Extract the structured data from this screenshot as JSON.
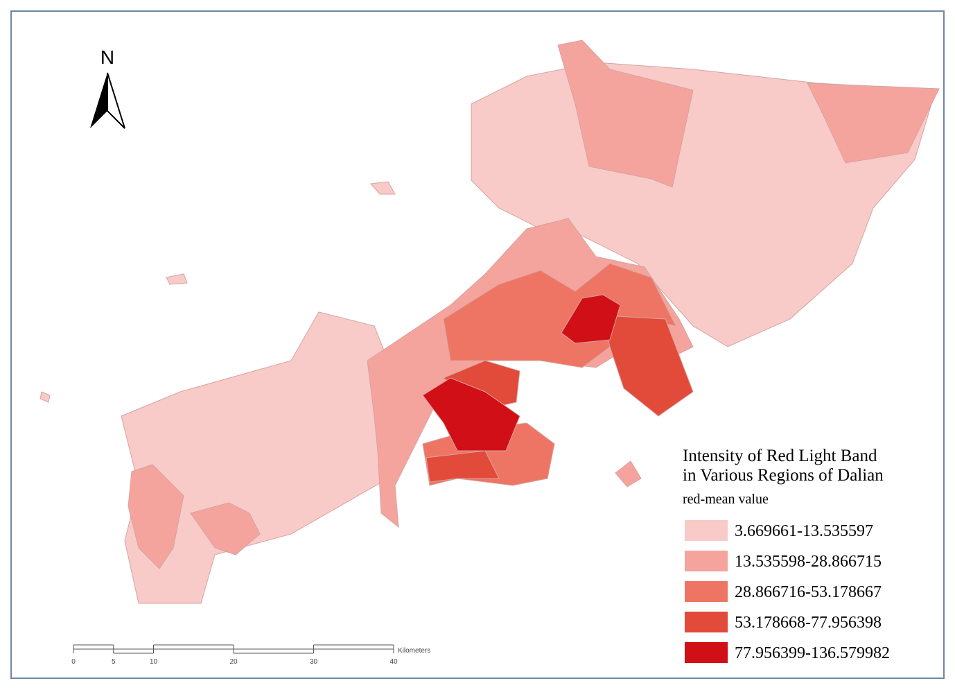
{
  "north_label": "N",
  "legend": {
    "title_lines": [
      "Intensity of Red Light Band",
      "in Various Regions of Dalian"
    ],
    "subtitle": "red-mean value",
    "classes": [
      {
        "label": "3.669661-13.535597",
        "color": "#f8cac8"
      },
      {
        "label": "13.535598-28.866715",
        "color": "#f4a49c"
      },
      {
        "label": "28.866716-53.178667",
        "color": "#ee7564"
      },
      {
        "label": "53.178668-77.956398",
        "color": "#e24a3a"
      },
      {
        "label": "77.956399-136.579982",
        "color": "#d00f16"
      }
    ]
  },
  "scale_bar": {
    "ticks": [
      0,
      5,
      10,
      20,
      30,
      40
    ],
    "unit": "Kilometers"
  }
}
